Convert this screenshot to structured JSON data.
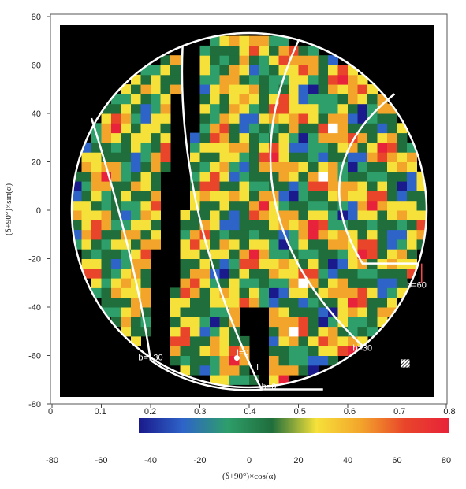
{
  "chart_data": {
    "type": "heatmap",
    "title": "",
    "xlabel": "(δ+90°)×cos(α)",
    "ylabel": "(δ+90°)×sin(α)",
    "xlim": [
      -80,
      80
    ],
    "ylim": [
      -80,
      80
    ],
    "xticks": [
      -80,
      -60,
      -40,
      -20,
      0,
      20,
      40,
      60,
      80
    ],
    "yticks": [
      80,
      60,
      40,
      20,
      0,
      -20,
      -40,
      -60,
      -80
    ],
    "grid": false,
    "colorbar": {
      "range": [
        0,
        0.8
      ],
      "ticks": [
        "0",
        "0.1",
        "0.2",
        "0.3",
        "0.4",
        "0.5",
        "0.6",
        "0.7",
        "0.8"
      ],
      "colors": [
        "#1a1a8c",
        "#2e64c8",
        "#2e9e6a",
        "#1f6e3c",
        "#f6e13a",
        "#f3a52b",
        "#e8452a",
        "#e8223a"
      ]
    },
    "map_radius": 72,
    "galactic_latitude_lines": [
      {
        "label": "b=+30",
        "label_pos": [
          -40,
          -62
        ]
      },
      {
        "label": "b=0",
        "label_pos": [
          8,
          -74
        ]
      },
      {
        "label": "b=30",
        "label_pos": [
          46,
          -58
        ]
      },
      {
        "label": "b=60",
        "label_pos": [
          68,
          -32
        ]
      }
    ],
    "longitude_markers": [
      {
        "label": "l=0",
        "pos": [
          -5,
          -60
        ]
      },
      {
        "label": "l",
        "pos": [
          3,
          -66
        ]
      }
    ]
  }
}
